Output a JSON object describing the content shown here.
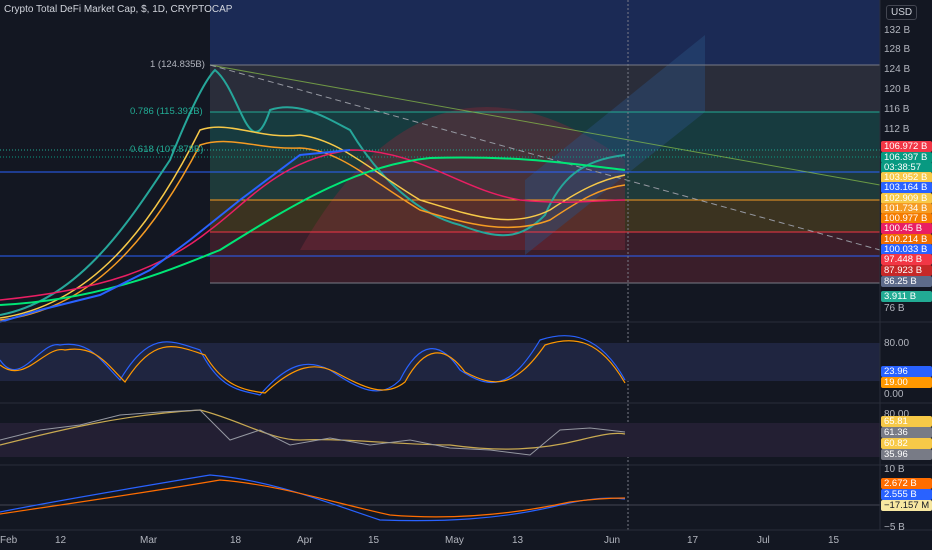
{
  "header": {
    "title": "Crypto Total DeFi Market Cap, $, 1D, CRYPTOCAP",
    "currency": "USD"
  },
  "price_axis": [
    "132 B",
    "128 B",
    "124 B",
    "120 B",
    "116 B",
    "112 B",
    "76 B"
  ],
  "fib_labels": [
    "1 (124.835B)",
    "0.786 (115.392B)",
    "0.618 (107.878B)"
  ],
  "price_tags": [
    {
      "label": "106.972 B",
      "color": "#f23645"
    },
    {
      "label": "106.397 B",
      "color": "#089981"
    },
    {
      "label": "03:38:57",
      "color": "#089981"
    },
    {
      "label": "103.952 B",
      "color": "#f7c948"
    },
    {
      "label": "103.164 B",
      "color": "#2962ff"
    },
    {
      "label": "102.909 B",
      "color": "#f7c948"
    },
    {
      "label": "101.734 B",
      "color": "#f59b23"
    },
    {
      "label": "100.977 B",
      "color": "#f57c00"
    },
    {
      "label": "100.45 B",
      "color": "#e91e63"
    },
    {
      "label": "100.214 B",
      "color": "#ef6c00"
    },
    {
      "label": "100.033 B",
      "color": "#2962ff"
    },
    {
      "label": "97.448 B",
      "color": "#f23645"
    },
    {
      "label": "87.923 B",
      "color": "#c62828"
    },
    {
      "label": "86.25 B",
      "color": "#5d6b8a"
    },
    {
      "label": "3.911 B",
      "color": "#22ab94"
    }
  ],
  "stoch": {
    "axis": [
      "80.00",
      "0.00"
    ],
    "tags": [
      {
        "label": "23.96",
        "color": "#2962ff"
      },
      {
        "label": "19.00",
        "color": "#ff9800"
      }
    ]
  },
  "rsi": {
    "axis": [
      "80.00"
    ],
    "tags": [
      {
        "label": "65.81",
        "color": "#f7c948"
      },
      {
        "label": "61.36",
        "color": "#787b86"
      },
      {
        "label": "60.82",
        "color": "#f7c948"
      },
      {
        "label": "35.96",
        "color": "#787b86"
      }
    ]
  },
  "macd": {
    "axis": [
      "10 B",
      "−5 B"
    ],
    "tags": [
      {
        "label": "2.672 B",
        "color": "#ff6d00"
      },
      {
        "label": "2.555 B",
        "color": "#2962ff"
      },
      {
        "label": "−17.157 M",
        "color": "#f7e7a1"
      }
    ]
  },
  "time_axis": [
    "Feb",
    "12",
    "Mar",
    "18",
    "Apr",
    "15",
    "May",
    "13",
    "Jun",
    "17",
    "Jul",
    "15"
  ]
}
